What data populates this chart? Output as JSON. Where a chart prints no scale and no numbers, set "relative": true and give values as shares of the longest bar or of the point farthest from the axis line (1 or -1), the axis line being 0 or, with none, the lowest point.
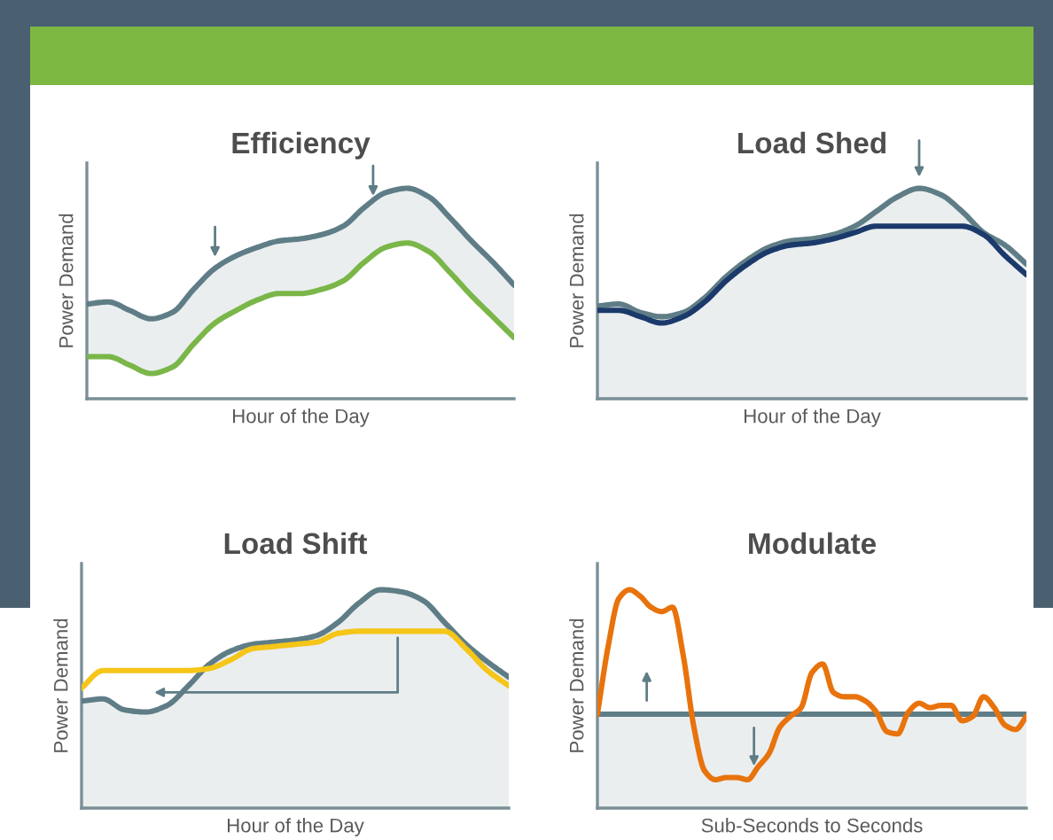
{
  "chart_data": [
    {
      "type": "line",
      "title": "Efficiency",
      "ylabel": "Power Demand",
      "xlabel": "Hour of the Day",
      "relative": true,
      "categories": [
        null,
        null,
        null,
        null,
        null,
        null,
        null,
        null,
        null,
        null,
        null,
        null,
        null,
        null,
        null,
        null,
        null,
        null,
        null,
        null,
        null
      ],
      "series": [
        {
          "color": "#5f7d86",
          "values": [
            0.45,
            0.46,
            0.42,
            0.38,
            0.41,
            0.52,
            0.62,
            0.68,
            0.72,
            0.75,
            0.76,
            0.78,
            0.82,
            0.91,
            0.98,
            1.0,
            0.96,
            0.86,
            0.75,
            0.65,
            0.54
          ],
          "lower": [
            0.2,
            0.2,
            0.16,
            0.12,
            0.15,
            0.26,
            0.36,
            0.42,
            0.47,
            0.5,
            0.5,
            0.52,
            0.56,
            0.65,
            0.72,
            0.74,
            0.7,
            0.6,
            0.49,
            0.39,
            0.29
          ],
          "upper": [
            0.45,
            0.46,
            0.42,
            0.38,
            0.41,
            0.52,
            0.62,
            0.68,
            0.72,
            0.75,
            0.76,
            0.78,
            0.82,
            0.91,
            0.98,
            1.0,
            0.96,
            0.86,
            0.75,
            0.65,
            0.54
          ]
        },
        {
          "color": "#7ab648",
          "values": [
            0.2,
            0.2,
            0.16,
            0.12,
            0.15,
            0.26,
            0.36,
            0.42,
            0.47,
            0.5,
            0.5,
            0.52,
            0.56,
            0.65,
            0.72,
            0.74,
            0.7,
            0.6,
            0.49,
            0.39,
            0.29
          ]
        }
      ]
    },
    {
      "type": "line",
      "title": "Load Shed",
      "ylabel": "Power Demand",
      "xlabel": "Hour of the Day",
      "relative": true,
      "categories": [
        null,
        null,
        null,
        null,
        null,
        null,
        null,
        null,
        null,
        null,
        null,
        null,
        null,
        null,
        null,
        null,
        null,
        null,
        null,
        null,
        null
      ],
      "series": [
        {
          "type": "area",
          "color": "#5f7d86",
          "values": [
            0.44,
            0.45,
            0.41,
            0.39,
            0.41,
            0.48,
            0.58,
            0.66,
            0.72,
            0.75,
            0.76,
            0.78,
            0.82,
            0.89,
            0.96,
            1.0,
            0.97,
            0.89,
            0.79,
            0.73,
            0.64
          ]
        },
        {
          "color": "#1b3a6b",
          "values": [
            0.42,
            0.42,
            0.39,
            0.36,
            0.39,
            0.46,
            0.56,
            0.64,
            0.7,
            0.73,
            0.74,
            0.76,
            0.79,
            0.82,
            0.82,
            0.82,
            0.82,
            0.82,
            0.78,
            0.68,
            0.59
          ]
        }
      ]
    },
    {
      "type": "line",
      "title": "Load Shift",
      "ylabel": "Power Demand",
      "xlabel": "Hour of the Day",
      "relative": true,
      "categories": [
        null,
        null,
        null,
        null,
        null,
        null,
        null,
        null,
        null,
        null,
        null,
        null,
        null,
        null,
        null,
        null,
        null,
        null,
        null,
        null,
        null
      ],
      "series": [
        {
          "type": "area",
          "color": "#5f7d86",
          "values": [
            0.49,
            0.5,
            0.45,
            0.44,
            0.47,
            0.56,
            0.66,
            0.72,
            0.75,
            0.76,
            0.77,
            0.79,
            0.85,
            0.94,
            1.0,
            0.99,
            0.95,
            0.85,
            0.75,
            0.67,
            0.6
          ]
        },
        {
          "color": "#f5c518",
          "values": [
            0.55,
            0.63,
            0.63,
            0.63,
            0.63,
            0.63,
            0.64,
            0.68,
            0.73,
            0.74,
            0.75,
            0.76,
            0.8,
            0.81,
            0.81,
            0.81,
            0.81,
            0.81,
            0.73,
            0.63,
            0.56
          ]
        }
      ]
    },
    {
      "type": "line",
      "title": "Modulate",
      "ylabel": "Power Demand",
      "xlabel": "Sub-Seconds to Seconds",
      "relative": true,
      "categories": [
        null,
        null,
        null,
        null,
        null,
        null,
        null,
        null,
        null,
        null,
        null,
        null,
        null,
        null,
        null,
        null,
        null,
        null,
        null,
        null,
        null,
        null,
        null,
        null,
        null,
        null,
        null,
        null,
        null,
        null,
        null,
        null,
        null,
        null,
        null,
        null,
        null,
        null,
        null,
        null,
        null
      ],
      "series": [
        {
          "type": "area",
          "color": "#5f7d86",
          "values": [
            0.43,
            0.43,
            0.43,
            0.43,
            0.43,
            0.43,
            0.43,
            0.43,
            0.43,
            0.43,
            0.43,
            0.43,
            0.43,
            0.43,
            0.43,
            0.43,
            0.43,
            0.43,
            0.43,
            0.43,
            0.43,
            0.43,
            0.43,
            0.43,
            0.43,
            0.43,
            0.43,
            0.43,
            0.43,
            0.43,
            0.43,
            0.43,
            0.43,
            0.43,
            0.43,
            0.43,
            0.43,
            0.43,
            0.43,
            0.43,
            0.43
          ]
        },
        {
          "color": "#e8730c",
          "values": [
            0.43,
            0.74,
            0.96,
            1.0,
            0.97,
            0.92,
            0.9,
            0.92,
            0.7,
            0.37,
            0.17,
            0.13,
            0.14,
            0.14,
            0.13,
            0.19,
            0.25,
            0.37,
            0.42,
            0.46,
            0.62,
            0.66,
            0.53,
            0.51,
            0.51,
            0.49,
            0.44,
            0.35,
            0.34,
            0.44,
            0.48,
            0.46,
            0.47,
            0.47,
            0.4,
            0.42,
            0.51,
            0.46,
            0.38,
            0.36,
            0.42
          ]
        }
      ]
    }
  ]
}
